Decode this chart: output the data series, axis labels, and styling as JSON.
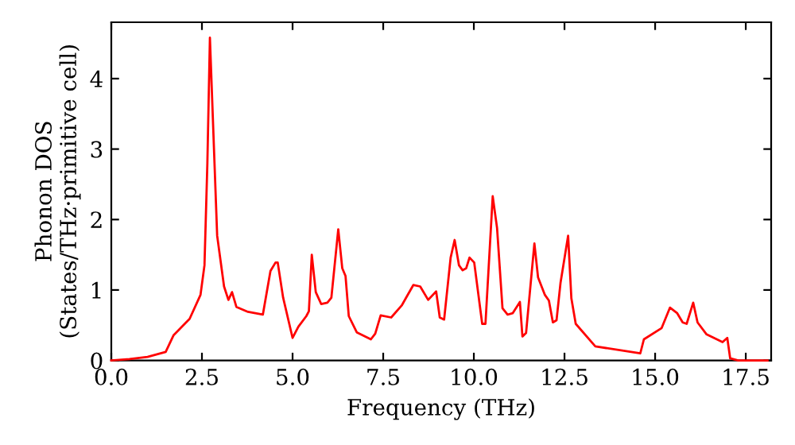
{
  "chart_data": {
    "type": "line",
    "xlabel": "Frequency (THz)",
    "ylabel": "Phonon DOS\n(States/THz·primitive cell)",
    "xlim": [
      0,
      18.2
    ],
    "ylim": [
      0,
      4.8
    ],
    "xticks": [
      {
        "value": 0,
        "label": "0.0"
      },
      2.5,
      {
        "value": 5,
        "label": "5.0"
      },
      7.5,
      {
        "value": 10,
        "label": "10.0"
      },
      12.5,
      {
        "value": 15,
        "label": "15.0"
      },
      17.5
    ],
    "yticks": [
      0,
      1,
      2,
      3,
      4
    ],
    "grid": false,
    "legend": false,
    "marker": "none",
    "line_style": "solid",
    "series": [
      {
        "color": "#ff0000",
        "x": [
          0,
          0.5,
          1.0,
          1.5,
          1.72,
          2.16,
          2.46,
          2.57,
          2.65,
          2.72,
          2.92,
          3.11,
          3.23,
          3.33,
          3.45,
          3.77,
          4.18,
          4.39,
          4.53,
          4.59,
          4.74,
          5.0,
          5.16,
          5.38,
          5.45,
          5.53,
          5.64,
          5.79,
          5.96,
          6.07,
          6.26,
          6.37,
          6.46,
          6.55,
          6.77,
          7.16,
          7.28,
          7.43,
          7.72,
          8.01,
          8.33,
          8.52,
          8.74,
          8.96,
          9.06,
          9.18,
          9.36,
          9.47,
          9.59,
          9.69,
          9.79,
          9.88,
          10.01,
          10.23,
          10.32,
          10.52,
          10.64,
          10.79,
          10.93,
          11.07,
          11.27,
          11.34,
          11.44,
          11.67,
          11.77,
          11.96,
          12.07,
          12.18,
          12.28,
          12.39,
          12.6,
          12.69,
          12.81,
          13.35,
          14.59,
          14.69,
          15.18,
          15.41,
          15.61,
          15.76,
          15.87,
          16.05,
          16.17,
          16.42,
          16.86,
          16.99,
          17.07,
          17.29,
          18.1
        ],
        "values": [
          0,
          0.02,
          0.05,
          0.12,
          0.36,
          0.59,
          0.93,
          1.35,
          2.8,
          4.58,
          1.77,
          1.05,
          0.86,
          0.97,
          0.76,
          0.69,
          0.65,
          1.27,
          1.39,
          1.39,
          0.89,
          0.32,
          0.48,
          0.63,
          0.7,
          1.5,
          0.97,
          0.8,
          0.82,
          0.89,
          1.86,
          1.31,
          1.2,
          0.63,
          0.4,
          0.3,
          0.38,
          0.64,
          0.61,
          0.78,
          1.07,
          1.05,
          0.86,
          0.98,
          0.61,
          0.58,
          1.46,
          1.71,
          1.35,
          1.28,
          1.31,
          1.46,
          1.39,
          0.52,
          0.52,
          2.33,
          1.88,
          0.74,
          0.65,
          0.67,
          0.83,
          0.34,
          0.39,
          1.66,
          1.18,
          0.93,
          0.85,
          0.54,
          0.57,
          1.1,
          1.77,
          0.88,
          0.52,
          0.2,
          0.1,
          0.3,
          0.46,
          0.75,
          0.67,
          0.54,
          0.52,
          0.82,
          0.54,
          0.37,
          0.26,
          0.32,
          0.03,
          0,
          0
        ]
      }
    ]
  }
}
